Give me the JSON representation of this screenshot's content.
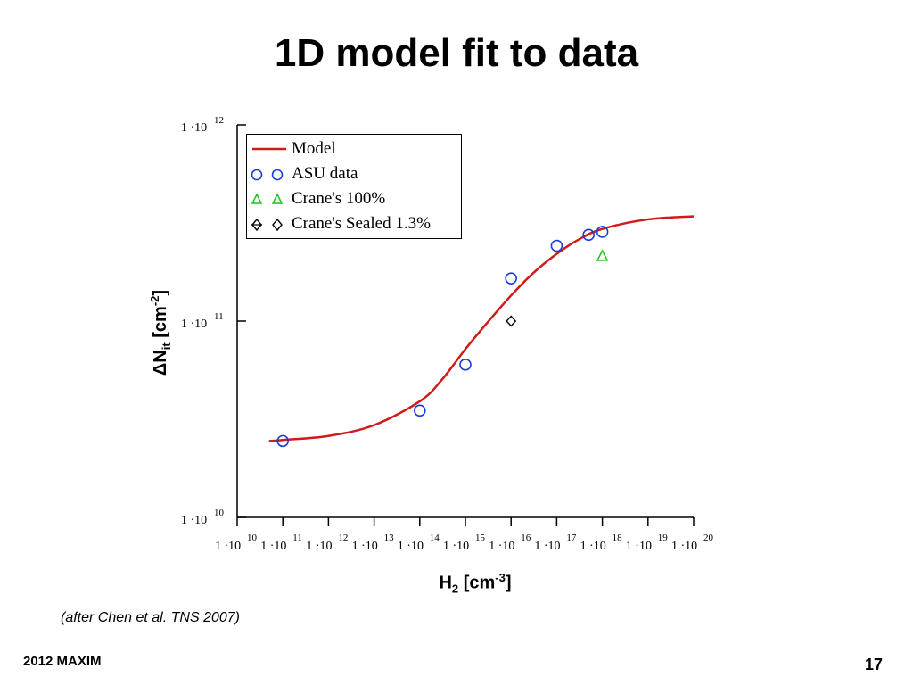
{
  "slide": {
    "title": "1D model fit to data",
    "note": "(after Chen et al. TNS 2007)",
    "footer_left": "2012 MAXIM",
    "page_number": "17"
  },
  "chart_data": {
    "type": "scatter",
    "x_scale": "log",
    "y_scale": "log",
    "xlim": [
      10000000000.0,
      1e+20
    ],
    "ylim": [
      10000000000.0,
      1000000000000.0
    ],
    "xlabel_html": "H<sub>2</sub> [cm<sup>-3</sup>]",
    "ylabel_html": "&Delta;N<sub>it</sub> [cm<sup>-2</sup>]",
    "x_ticks": [
      {
        "base": "1 ·10",
        "exp": "10"
      },
      {
        "base": "1 ·10",
        "exp": "11"
      },
      {
        "base": "1 ·10",
        "exp": "12"
      },
      {
        "base": "1 ·10",
        "exp": "13"
      },
      {
        "base": "1 ·10",
        "exp": "14"
      },
      {
        "base": "1 ·10",
        "exp": "15"
      },
      {
        "base": "1 ·10",
        "exp": "16"
      },
      {
        "base": "1 ·10",
        "exp": "17"
      },
      {
        "base": "1 ·10",
        "exp": "18"
      },
      {
        "base": "1 ·10",
        "exp": "19"
      },
      {
        "base": "1 ·10",
        "exp": "20"
      }
    ],
    "y_ticks": [
      {
        "base": "1 ·10",
        "exp": "10"
      },
      {
        "base": "1 ·10",
        "exp": "11"
      },
      {
        "base": "1 ·10",
        "exp": "12"
      }
    ],
    "legend_position": "top-left",
    "series": [
      {
        "name": "Model",
        "kind": "line",
        "color": "#d11a1a",
        "x": [
          50000000000.0,
          100000000000.0,
          1000000000000.0,
          10000000000000.0,
          100000000000000.0,
          300000000000000.0,
          1000000000000000.0,
          3000000000000000.0,
          1e+16,
          3e+16,
          1e+17,
          3e+17,
          1e+18,
          1e+19,
          1e+20
        ],
        "y": [
          24500000000.0,
          24800000000.0,
          26000000000.0,
          29500000000.0,
          39000000000.0,
          50000000000.0,
          72000000000.0,
          98000000000.0,
          135000000000.0,
          175000000000.0,
          220000000000.0,
          260000000000.0,
          295000000000.0,
          330000000000.0,
          342000000000.0
        ]
      },
      {
        "name": "ASU data",
        "kind": "circle",
        "color": "#1a3fd6",
        "x": [
          100000000000.0,
          100000000000000.0,
          1000000000000000.0,
          1e+16,
          1e+17,
          5e+17,
          1e+18
        ],
        "y": [
          24500000000.0,
          35000000000.0,
          60000000000.0,
          165000000000.0,
          242000000000.0,
          275000000000.0,
          285000000000.0
        ]
      },
      {
        "name": "Crane's 100%",
        "kind": "triangle",
        "color": "#1fc21f",
        "x": [
          1e+18
        ],
        "y": [
          215000000000.0
        ]
      },
      {
        "name": "Crane's Sealed 1.3%",
        "kind": "diamond",
        "color": "#000000",
        "x": [
          1e+16
        ],
        "y": [
          100000000000.0
        ]
      }
    ]
  }
}
